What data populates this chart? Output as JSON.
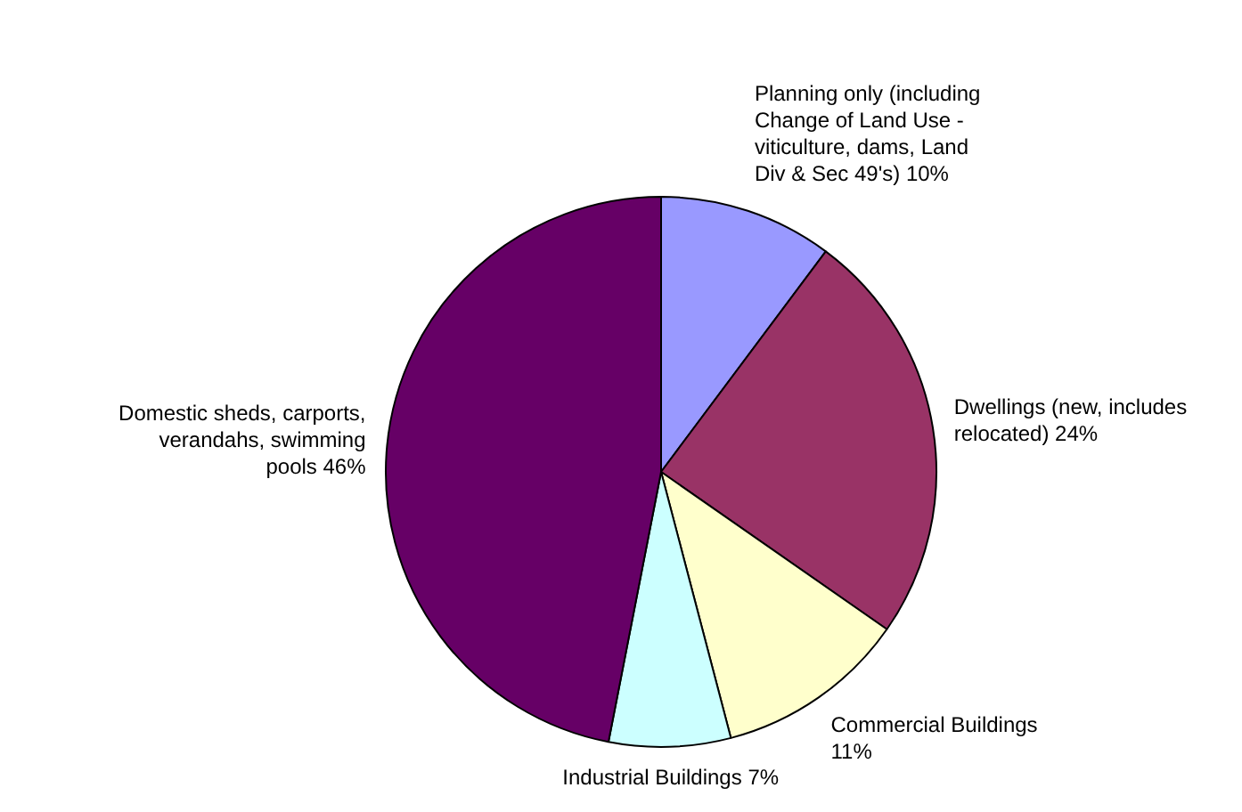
{
  "chart_data": {
    "type": "pie",
    "categories": [
      "Planning only (including Change of Land Use - viticulture, dams, Land Div & Sec 49's)",
      "Dwellings (new, includes relocated)",
      "Commercial Buildings",
      "Industrial Buildings",
      "Domestic sheds, carports, verandahs, swimming pools"
    ],
    "values": [
      10,
      24,
      11,
      7,
      46
    ],
    "value_labels": [
      "10%",
      "24%",
      "11%",
      "7%",
      "46%"
    ],
    "colors": [
      "#9999ff",
      "#993366",
      "#ffffcc",
      "#ccffff",
      "#660066"
    ],
    "legend": false
  }
}
